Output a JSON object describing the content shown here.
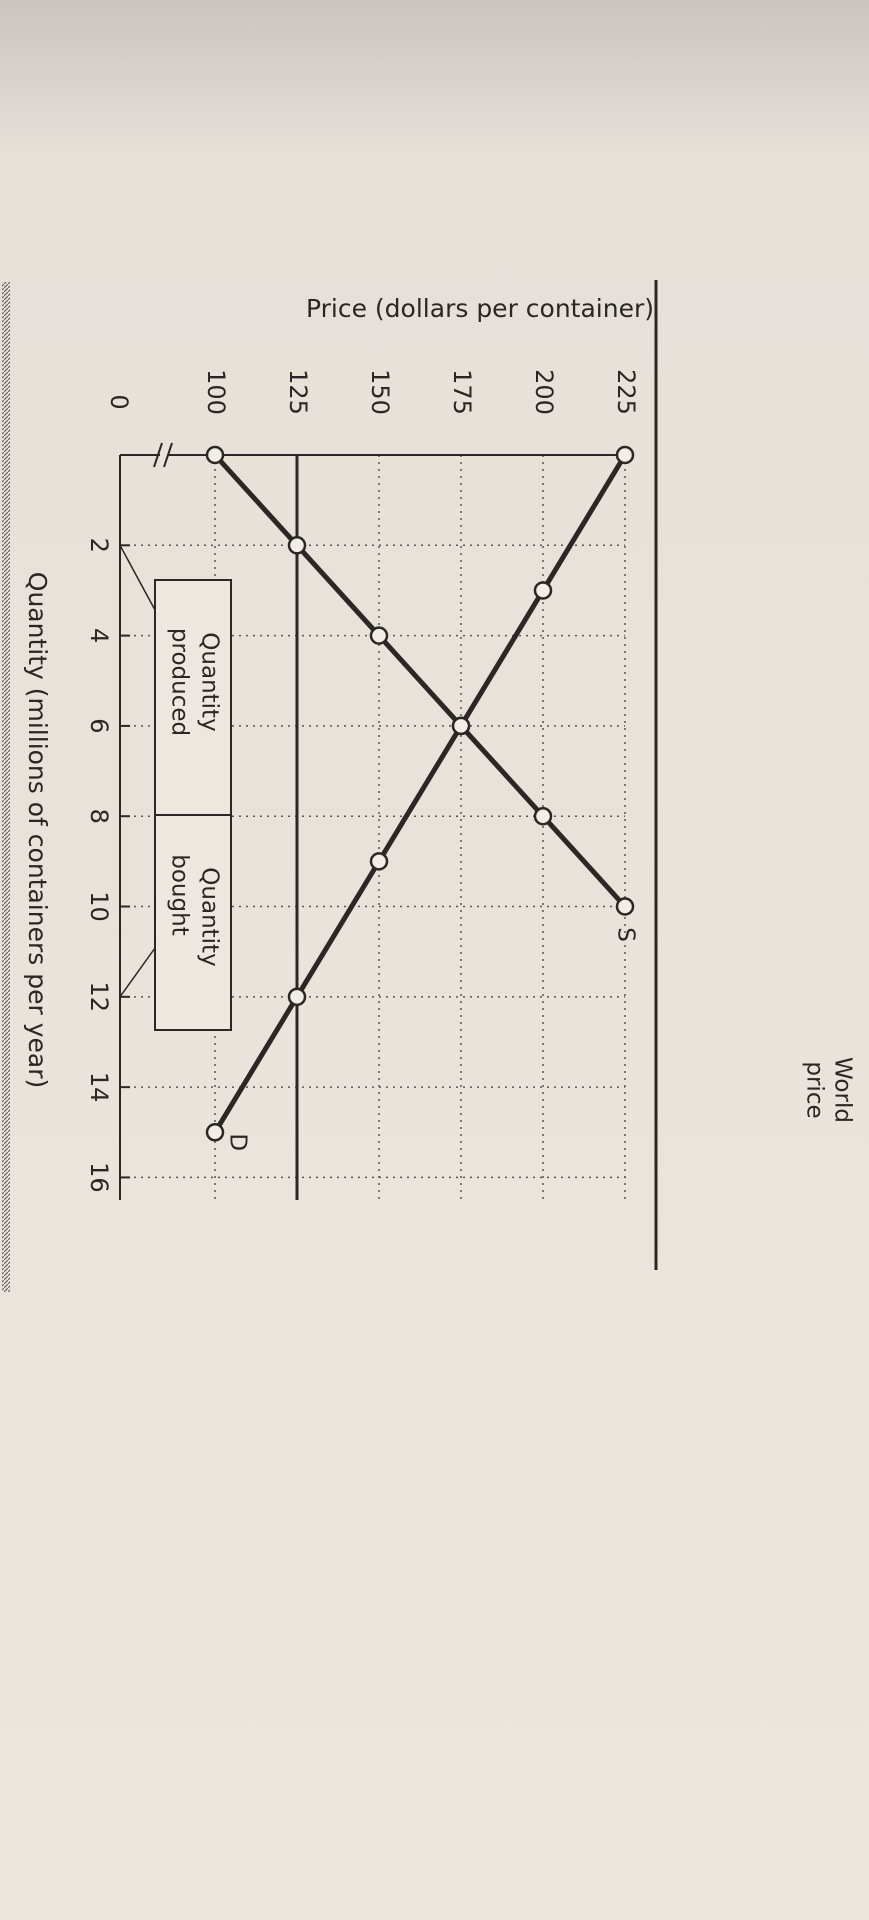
{
  "chart_data": {
    "type": "line",
    "title_y": "Price (dollars per container)",
    "title_x": "Quantity (millions of containers per year)",
    "origin_label": "0",
    "xlim": [
      0,
      16.5
    ],
    "ylim": [
      100,
      225
    ],
    "xticks": [
      2,
      4,
      6,
      8,
      10,
      12,
      14,
      16
    ],
    "yticks": [
      100,
      125,
      150,
      175,
      200,
      225
    ],
    "grid": true,
    "series": [
      {
        "name": "S",
        "color": "#2b2725",
        "x": [
          0,
          2,
          4,
          6,
          8,
          10
        ],
        "values": [
          100,
          125,
          150,
          175,
          200,
          225
        ]
      },
      {
        "name": "D",
        "color": "#2b2725",
        "x": [
          0,
          3,
          6,
          9,
          12,
          15
        ],
        "values": [
          225,
          200,
          175,
          150,
          125,
          100
        ]
      }
    ],
    "world_price": 125,
    "world_price_label": [
      "World",
      "price"
    ],
    "quantity_produced": 2,
    "quantity_produced_label": [
      "Quantity",
      "produced"
    ],
    "quantity_bought": 12,
    "quantity_bought_label": [
      "Quantity",
      "bought"
    ]
  }
}
